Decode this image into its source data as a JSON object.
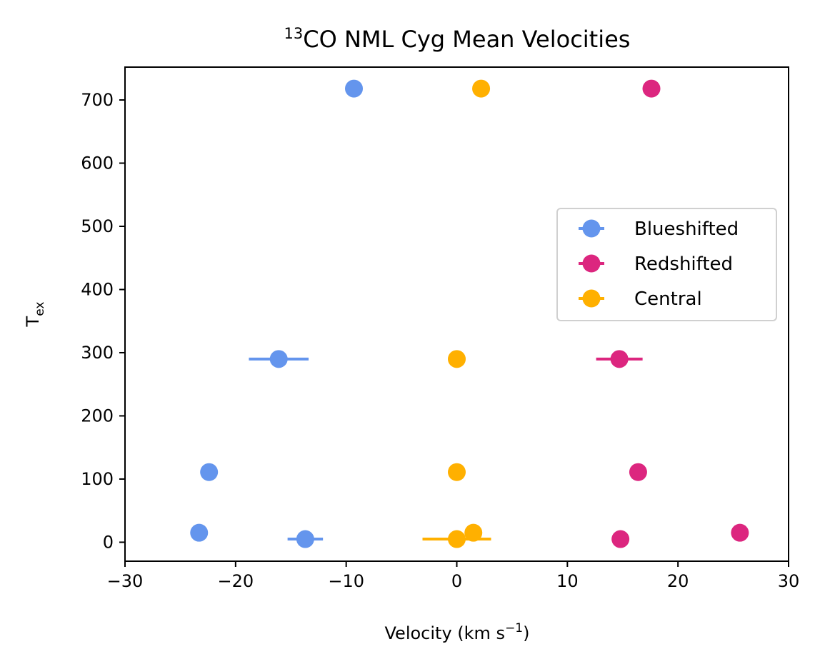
{
  "chart_data": {
    "type": "scatter",
    "title": {
      "superscript": "13",
      "text": "CO NML Cyg Mean Velocities"
    },
    "xlabel": {
      "text": "Velocity (km s",
      "sup": "−1",
      "suffix": ")"
    },
    "ylabel": {
      "text": "T",
      "sub": "ex"
    },
    "xlim": [
      -30,
      30
    ],
    "ylim": [
      -30,
      752
    ],
    "xticks": [
      -30,
      -20,
      -10,
      0,
      10,
      20,
      30
    ],
    "xtick_labels": [
      "−30",
      "−20",
      "−10",
      "0",
      "10",
      "20",
      "30"
    ],
    "yticks": [
      0,
      100,
      200,
      300,
      400,
      500,
      600,
      700
    ],
    "ytick_labels": [
      "0",
      "100",
      "200",
      "300",
      "400",
      "500",
      "600",
      "700"
    ],
    "grid": false,
    "legend_position": "center-right",
    "series": [
      {
        "name": "Blueshifted",
        "color": "#6495ED",
        "points": [
          {
            "x": -9.3,
            "y": 718,
            "xerr": 0
          },
          {
            "x": -16.1,
            "y": 290,
            "xerr": 2.7
          },
          {
            "x": -22.4,
            "y": 111,
            "xerr": 0
          },
          {
            "x": -23.3,
            "y": 15,
            "xerr": 0
          },
          {
            "x": -13.7,
            "y": 5,
            "xerr": 1.6
          }
        ]
      },
      {
        "name": "Redshifted",
        "color": "#DC267F",
        "points": [
          {
            "x": 17.6,
            "y": 718,
            "xerr": 0
          },
          {
            "x": 14.7,
            "y": 290,
            "xerr": 2.1
          },
          {
            "x": 16.4,
            "y": 111,
            "xerr": 0
          },
          {
            "x": 25.6,
            "y": 15,
            "xerr": 0
          },
          {
            "x": 14.8,
            "y": 5,
            "xerr": 0
          }
        ]
      },
      {
        "name": "Central",
        "color": "#FFB000",
        "points": [
          {
            "x": 2.2,
            "y": 718,
            "xerr": 0
          },
          {
            "x": 0.0,
            "y": 290,
            "xerr": 0
          },
          {
            "x": 0.0,
            "y": 111,
            "xerr": 0
          },
          {
            "x": 1.5,
            "y": 15,
            "xerr": 0
          },
          {
            "x": 0.0,
            "y": 5,
            "xerr": 3.1
          }
        ]
      }
    ]
  }
}
